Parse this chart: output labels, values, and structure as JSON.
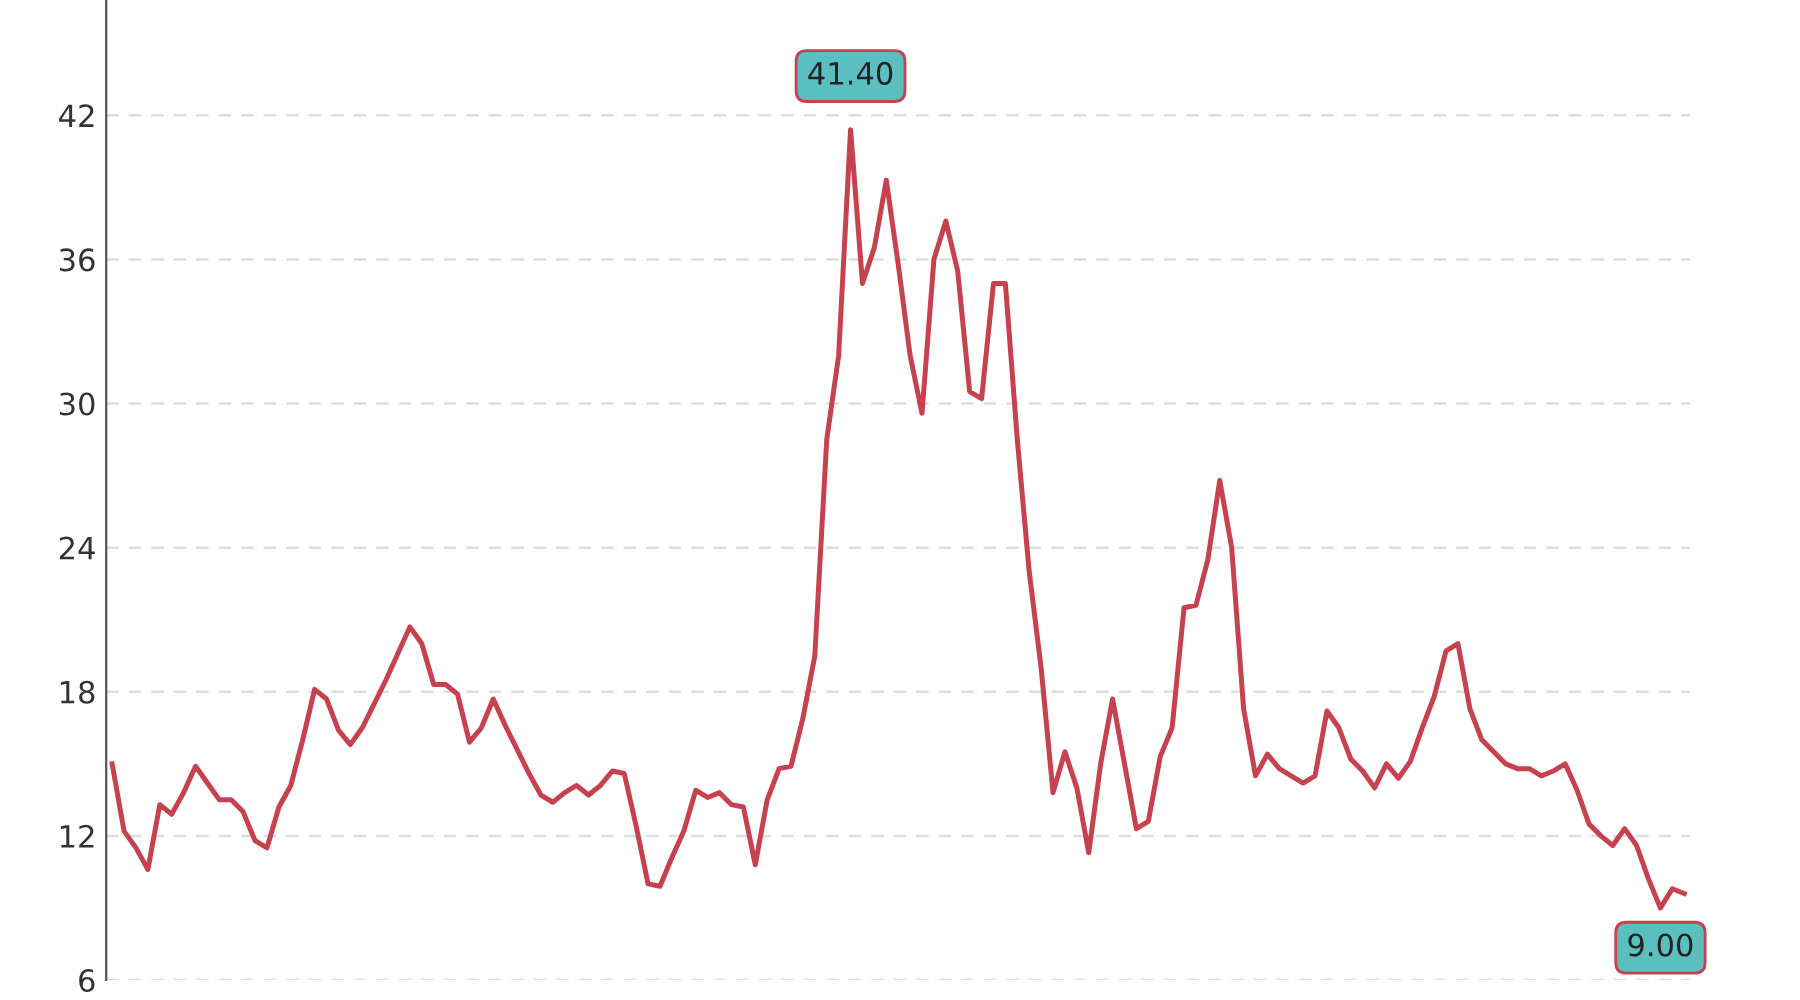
{
  "chart_data": {
    "type": "line",
    "categories": [
      null,
      null,
      null,
      null,
      null,
      null,
      null,
      null,
      null,
      null,
      null,
      null,
      null,
      null,
      null,
      null,
      null,
      null,
      null,
      null,
      null,
      null,
      null,
      null,
      null,
      null,
      null,
      null,
      null,
      null,
      null,
      null,
      null,
      null,
      null,
      null,
      null,
      null,
      null,
      null,
      null,
      null,
      null,
      null,
      null,
      null,
      null,
      null,
      null,
      null,
      null,
      null,
      null,
      null,
      null,
      null,
      null,
      null,
      null,
      null,
      null,
      null,
      null,
      null,
      null,
      null,
      null,
      null,
      null,
      null,
      null,
      null,
      null,
      null,
      null,
      null,
      null,
      null,
      null,
      null,
      null,
      null,
      null,
      null,
      null,
      null,
      null,
      null,
      null,
      null,
      null,
      null,
      null,
      null,
      null,
      null,
      null,
      null,
      null,
      null,
      null,
      null,
      null,
      null,
      null,
      null,
      null,
      null,
      null,
      null,
      null,
      null,
      null,
      null,
      null,
      null,
      null,
      null,
      null,
      null,
      null,
      null,
      null,
      null,
      null,
      null,
      null,
      null,
      null,
      null,
      null,
      null,
      null
    ],
    "series": [
      {
        "color": "#c8414f",
        "values": [
          15.0,
          12.2,
          11.5,
          10.6,
          13.3,
          12.9,
          13.8,
          14.9,
          14.2,
          13.5,
          13.5,
          13.0,
          11.8,
          11.5,
          13.2,
          14.1,
          16.0,
          18.1,
          17.7,
          16.4,
          15.8,
          16.5,
          17.5,
          18.5,
          19.6,
          20.7,
          20.0,
          18.3,
          18.3,
          17.9,
          15.9,
          16.5,
          17.7,
          16.6,
          15.6,
          14.6,
          13.7,
          13.4,
          13.8,
          14.1,
          13.7,
          14.1,
          14.7,
          14.6,
          12.4,
          10.0,
          9.9,
          11.1,
          12.2,
          13.9,
          13.6,
          13.8,
          13.3,
          13.2,
          10.8,
          13.5,
          14.8,
          14.9,
          16.9,
          19.5,
          28.5,
          32,
          41.4,
          35,
          36.5,
          39.3,
          35.8,
          32,
          29.6,
          36,
          37.6,
          35.5,
          30.5,
          30.2,
          35,
          35,
          28.5,
          23,
          19,
          13.8,
          15.5,
          14,
          11.3,
          15,
          17.7,
          15,
          12.3,
          12.6,
          15.3,
          16.5,
          21.5,
          21.6,
          23.5,
          26.8,
          24,
          17.3,
          14.5,
          15.4,
          14.8,
          14.5,
          14.2,
          14.5,
          17.2,
          16.5,
          15.2,
          14.7,
          14.0,
          15,
          14.4,
          15.1,
          16.5,
          17.8,
          19.7,
          20,
          17.3,
          16,
          15.5,
          15.0,
          14.8,
          14.8,
          14.5,
          14.7,
          15,
          13.9,
          12.5,
          12,
          11.6,
          12.3,
          11.6,
          10.2,
          9.0,
          9.8,
          9.6
        ]
      }
    ],
    "ylim": [
      6,
      46.8
    ],
    "yticks": [
      6,
      12,
      18,
      24,
      30,
      36,
      42
    ],
    "grid": "y",
    "tick_labels": "y",
    "annotations": [
      {
        "text": "41.40",
        "y": 41.4
      },
      {
        "text": "9.00",
        "y": 9.0
      }
    ]
  }
}
